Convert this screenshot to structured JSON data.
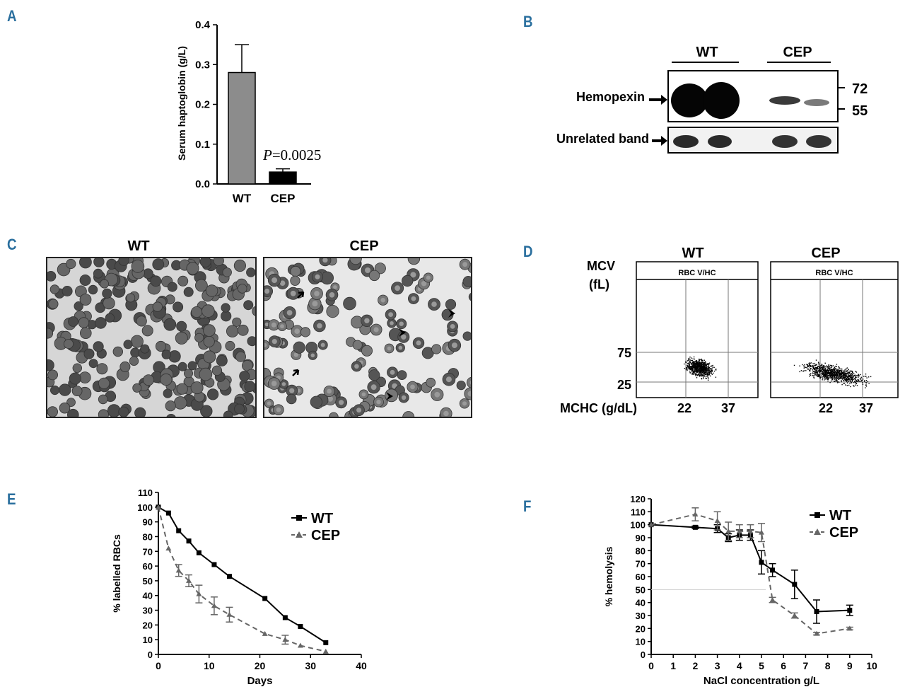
{
  "panels": {
    "a": "A",
    "b": "B",
    "c": "C",
    "d": "D",
    "e": "E",
    "f": "F"
  },
  "panel_b": {
    "groups": [
      "WT",
      "CEP"
    ],
    "row_labels": [
      "Hemopexin",
      "Unrelated band"
    ],
    "markers": [
      "72",
      "55"
    ]
  },
  "panel_c": {
    "titles": [
      "WT",
      "CEP"
    ]
  },
  "panel_d": {
    "titles": [
      "WT",
      "CEP"
    ],
    "box_header": "RBC V/HC",
    "y_label_1": "MCV",
    "y_label_2": "(fL)",
    "y_ticks": [
      "75",
      "25"
    ],
    "x_label": "MCHC (g/dL)",
    "x_ticks": [
      "22",
      "37"
    ]
  },
  "chart_data": [
    {
      "id": "A",
      "type": "bar",
      "categories": [
        "WT",
        "CEP"
      ],
      "values": [
        0.28,
        0.03
      ],
      "errors": [
        0.07,
        0.008
      ],
      "colors": [
        "#8c8c8c",
        "#000000"
      ],
      "ylabel": "Serum haptoglobin (g/L)",
      "ylim": [
        0,
        0.4
      ],
      "yticks": [
        "0.0",
        "0.1",
        "0.2",
        "0.3",
        "0.4"
      ],
      "annotation_italic": "P",
      "annotation_rest": "=0.0025"
    },
    {
      "id": "E",
      "type": "line",
      "xlabel": "Days",
      "ylabel": "% labelled RBCs",
      "xlim": [
        0,
        40
      ],
      "ylim": [
        0,
        110
      ],
      "xticks": [
        "0",
        "10",
        "20",
        "30",
        "40"
      ],
      "yticks": [
        "0",
        "10",
        "20",
        "30",
        "40",
        "50",
        "60",
        "70",
        "80",
        "90",
        "100",
        "110"
      ],
      "legend_position": "top-right",
      "series": [
        {
          "name": "WT",
          "color": "#000000",
          "marker": "square",
          "dashed": false,
          "x": [
            0,
            2,
            4,
            6,
            8,
            11,
            14,
            21,
            25,
            28,
            33
          ],
          "y": [
            100,
            96,
            84,
            77,
            69,
            61,
            53,
            38,
            25,
            19,
            8
          ],
          "err": [
            0,
            0,
            0,
            0,
            0,
            0,
            0,
            0,
            0,
            0,
            0
          ]
        },
        {
          "name": "CEP",
          "color": "#666666",
          "marker": "triangle",
          "dashed": true,
          "x": [
            0,
            2,
            4,
            6,
            8,
            11,
            14,
            21,
            25,
            28,
            33
          ],
          "y": [
            100,
            72,
            57,
            50,
            41,
            33,
            27,
            14,
            10,
            6,
            2
          ],
          "err": [
            0,
            0,
            4,
            4,
            6,
            6,
            5,
            0,
            3,
            0,
            0
          ]
        }
      ]
    },
    {
      "id": "F",
      "type": "line",
      "xlabel": "NaCl concentration g/L",
      "ylabel": "% hemolysis",
      "xlim": [
        0,
        10
      ],
      "ylim": [
        0,
        120
      ],
      "xticks": [
        "0",
        "1",
        "2",
        "3",
        "4",
        "5",
        "6",
        "7",
        "8",
        "9",
        "10"
      ],
      "yticks": [
        "0",
        "10",
        "20",
        "30",
        "40",
        "50",
        "60",
        "70",
        "80",
        "90",
        "100",
        "110",
        "120"
      ],
      "reference_line_y": 50,
      "legend_position": "top-right",
      "series": [
        {
          "name": "WT",
          "color": "#000000",
          "marker": "square",
          "dashed": false,
          "x": [
            0,
            2,
            3,
            3.5,
            4,
            4.5,
            5,
            5.5,
            6.5,
            7.5,
            9
          ],
          "y": [
            100,
            98,
            97,
            90,
            92,
            92,
            71,
            65,
            54,
            33,
            34
          ],
          "err": [
            0,
            1,
            3,
            3,
            4,
            4,
            9,
            5,
            11,
            9,
            4
          ]
        },
        {
          "name": "CEP",
          "color": "#666666",
          "marker": "triangle",
          "dashed": true,
          "x": [
            0,
            2,
            3,
            3.5,
            4,
            4.5,
            5,
            5.5,
            6.5,
            7.5,
            9
          ],
          "y": [
            100,
            108,
            103,
            95,
            95,
            95,
            94,
            42,
            30,
            16,
            20
          ],
          "err": [
            0,
            5,
            7,
            7,
            5,
            5,
            7,
            2,
            2,
            1,
            1
          ]
        }
      ]
    }
  ]
}
